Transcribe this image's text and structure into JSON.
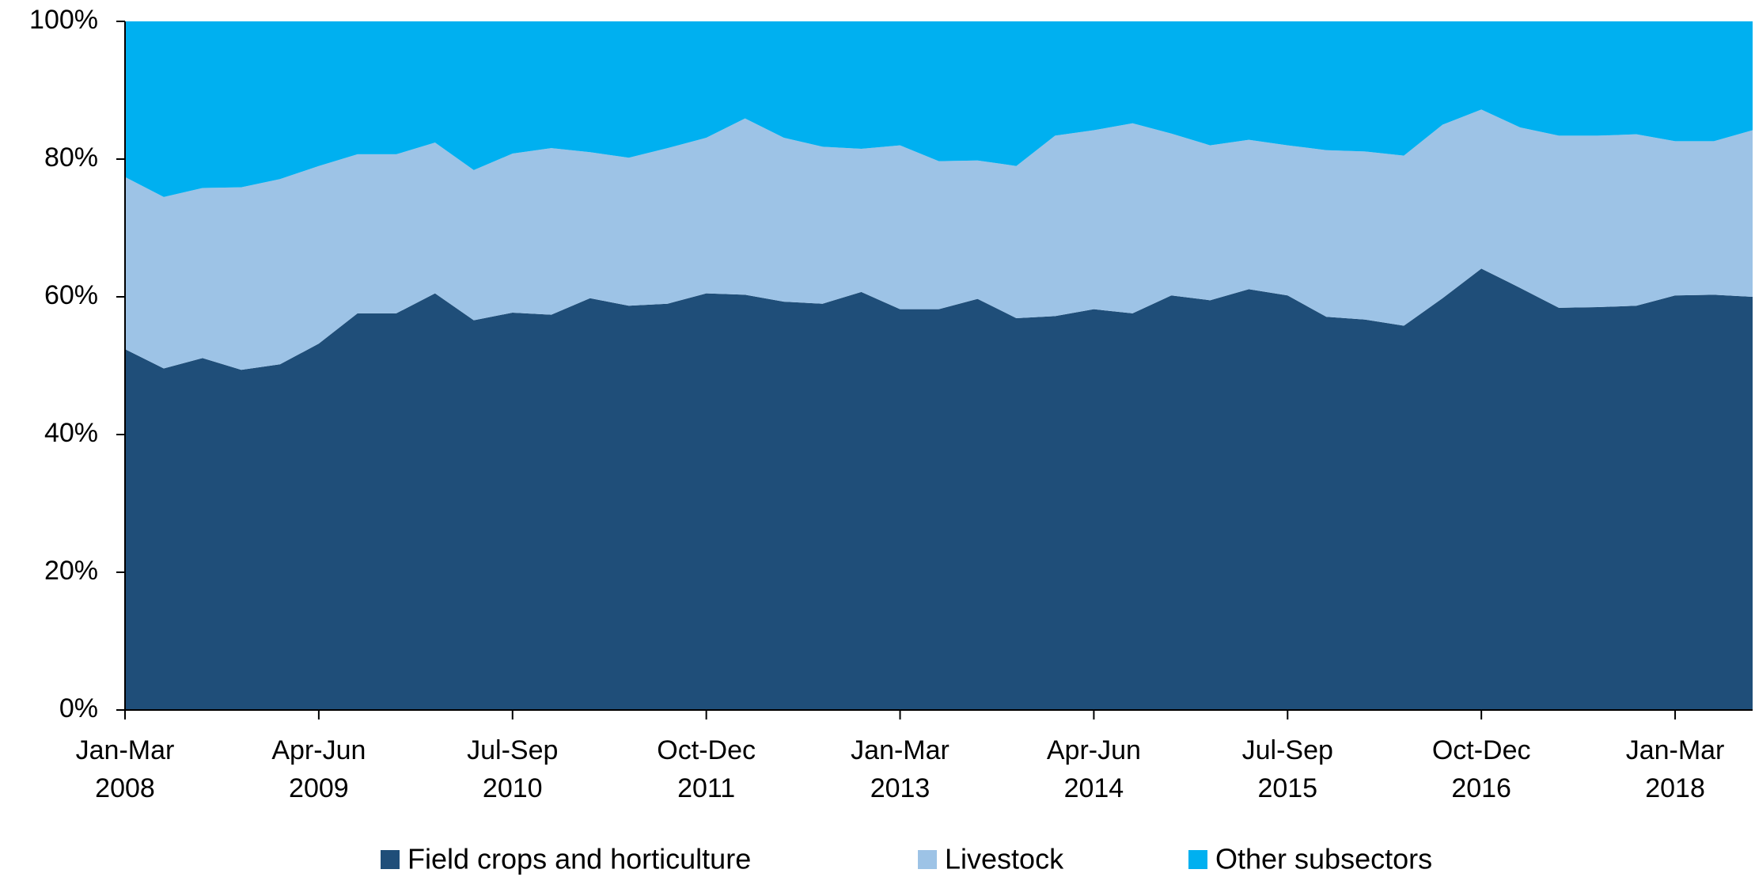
{
  "chart_data": {
    "type": "stacked_area",
    "categories": [
      "Jan-Mar 2008",
      null,
      null,
      null,
      null,
      "Apr-Jun 2009",
      null,
      null,
      null,
      null,
      "Jul-Sep 2010",
      null,
      null,
      null,
      null,
      "Oct-Dec 2011",
      null,
      null,
      null,
      null,
      "Jan-Mar 2013",
      null,
      null,
      null,
      null,
      "Apr-Jun 2014",
      null,
      null,
      null,
      null,
      "Jul-Sep 2015",
      null,
      null,
      null,
      null,
      "Oct-Dec 2016",
      null,
      null,
      null,
      null,
      "Jan-Mar 2018",
      null,
      null
    ],
    "series": [
      {
        "name": "Field crops and horticulture",
        "color": "#1f4e79",
        "values": [
          52.4,
          49.6,
          51.1,
          49.4,
          50.2,
          53.2,
          57.6,
          57.6,
          60.5,
          56.6,
          57.7,
          57.4,
          59.8,
          58.7,
          59.0,
          60.5,
          60.3,
          59.3,
          59.0,
          60.7,
          58.2,
          58.2,
          59.7,
          56.9,
          57.2,
          58.2,
          57.6,
          60.2,
          59.5,
          61.1,
          60.2,
          57.1,
          56.7,
          55.8,
          59.8,
          64.1,
          61.3,
          58.4,
          58.5,
          58.7,
          60.2,
          60.3,
          60.0
        ]
      },
      {
        "name": "Livestock",
        "color": "#9dc3e6",
        "values": [
          25.0,
          24.9,
          24.7,
          26.5,
          26.9,
          25.8,
          23.1,
          23.1,
          21.9,
          21.8,
          23.1,
          24.2,
          21.2,
          21.5,
          22.6,
          22.6,
          25.6,
          23.8,
          22.8,
          20.8,
          23.8,
          21.5,
          20.1,
          22.1,
          26.2,
          26.0,
          27.6,
          23.5,
          22.5,
          21.7,
          21.8,
          24.2,
          24.4,
          24.7,
          25.2,
          23.1,
          23.3,
          25.0,
          24.9,
          24.9,
          22.4,
          22.3,
          24.2
        ]
      },
      {
        "name": "Other subsectors",
        "color": "#00b0f0",
        "values": [
          22.6,
          25.5,
          24.2,
          24.1,
          22.9,
          21.0,
          19.3,
          19.3,
          17.6,
          21.6,
          19.2,
          18.4,
          19.0,
          19.8,
          18.4,
          16.9,
          14.1,
          16.9,
          18.2,
          18.5,
          18.0,
          20.3,
          20.2,
          21.0,
          16.6,
          15.8,
          14.8,
          16.3,
          18.0,
          17.2,
          18.0,
          18.7,
          18.9,
          19.5,
          15.0,
          12.8,
          15.4,
          16.6,
          16.6,
          16.4,
          17.4,
          17.4,
          15.8
        ]
      }
    ],
    "ylim": [
      0,
      100
    ],
    "yticks": [
      {
        "value": 0,
        "label": "0%"
      },
      {
        "value": 20,
        "label": "20%"
      },
      {
        "value": 40,
        "label": "40%"
      },
      {
        "value": 60,
        "label": "60%"
      },
      {
        "value": 80,
        "label": "80%"
      },
      {
        "value": 100,
        "label": "100%"
      }
    ],
    "legend": "bottom"
  }
}
